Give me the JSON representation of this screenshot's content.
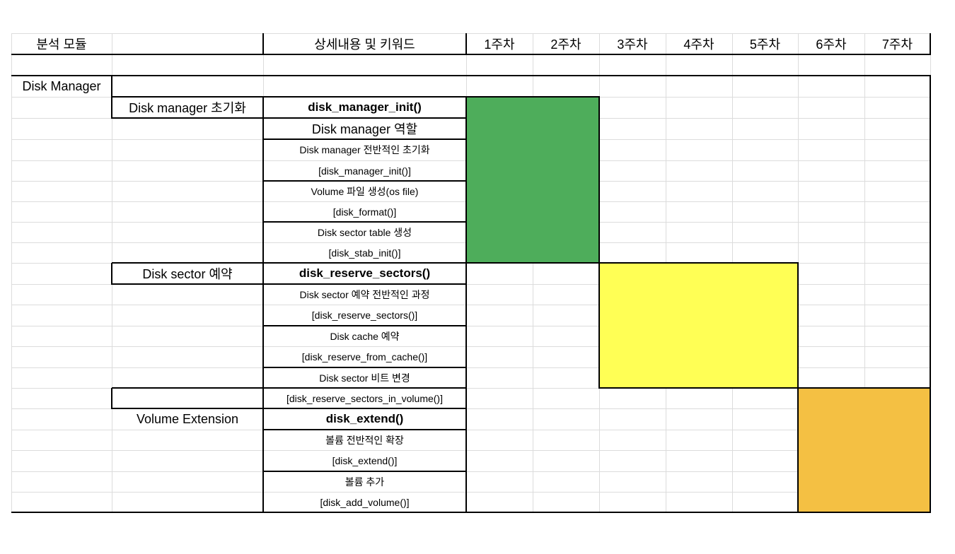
{
  "header": {
    "module": "분석 모듈",
    "detail": "상세내용 및 키워드",
    "weeks": [
      "1주차",
      "2주차",
      "3주차",
      "4주차",
      "5주차",
      "6주차",
      "7주차"
    ]
  },
  "module_name": "Disk Manager",
  "colors": {
    "green": "#4ead5b",
    "yellow": "#ffff55",
    "orange": "#f4c043"
  },
  "sections": [
    {
      "title": "Disk manager 초기화",
      "keyword": "disk_manager_init()",
      "items": [
        "Disk manager 역할",
        "Disk manager 전반적인 초기화",
        "[disk_manager_init()]",
        "Volume 파일 생성(os file)",
        "[disk_format()]",
        "Disk sector table 생성",
        "[disk_stab_init()]"
      ],
      "schedule": {
        "start_week": 1,
        "end_week": 2,
        "color": "green"
      }
    },
    {
      "title": "Disk sector 예약",
      "keyword": "disk_reserve_sectors()",
      "items": [
        "Disk sector 예약 전반적인 과정",
        "[disk_reserve_sectors()]",
        "Disk cache 예약",
        "[disk_reserve_from_cache()]",
        "Disk sector 비트 변경",
        "[disk_reserve_sectors_in_volume()]"
      ],
      "schedule": {
        "start_week": 3,
        "end_week": 5,
        "color": "yellow"
      }
    },
    {
      "title": "Volume Extension",
      "keyword": "disk_extend()",
      "items": [
        "볼륨 전반적인 확장",
        "[disk_extend()]",
        "볼륨 추가",
        "[disk_add_volume()]"
      ],
      "schedule": {
        "start_week": 6,
        "end_week": 7,
        "color": "orange"
      }
    }
  ]
}
